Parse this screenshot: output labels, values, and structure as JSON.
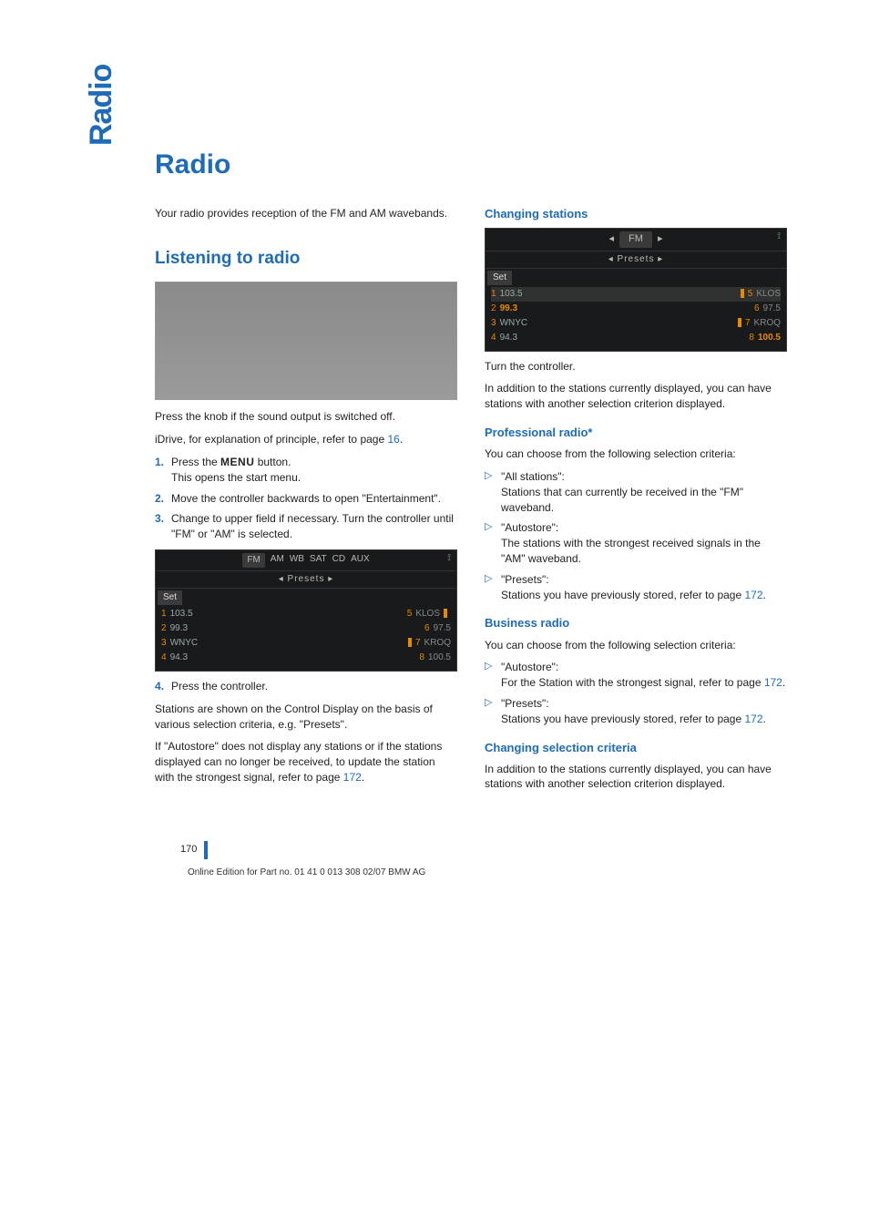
{
  "sidebar_title": "Radio",
  "page_title": "Radio",
  "intro": "Your radio provides reception of the FM and AM wavebands.",
  "left": {
    "section_title": "Listening to radio",
    "after_img1": "Press the knob if the sound output is switched off.",
    "idrive_line_a": "iDrive, for explanation of principle, refer to page ",
    "idrive_page": "16",
    "idrive_line_b": ".",
    "steps": [
      {
        "n": "1.",
        "pre": "Press the ",
        "btn": "MENU",
        "post": " button.",
        "sub": "This opens the start menu."
      },
      {
        "n": "2.",
        "text": "Move the controller backwards to open \"Entertainment\"."
      },
      {
        "n": "3.",
        "text": "Change to upper field if necessary. Turn the controller until \"FM\" or \"AM\" is selected."
      }
    ],
    "screen": {
      "top_tabs": [
        "FM",
        "AM",
        "WB",
        "SAT",
        "CD",
        "AUX"
      ],
      "sub": "◂  Presets  ▸",
      "set": "Set",
      "rows": [
        {
          "ln": "1",
          "l": "103.5",
          "rn": "5",
          "r": "KLOS",
          "bar": true
        },
        {
          "ln": "2",
          "l": "99.3",
          "rn": "6",
          "r": "97.5"
        },
        {
          "ln": "3",
          "l": "WNYC",
          "rn": "7",
          "r": "KROQ",
          "bar": true
        },
        {
          "ln": "4",
          "l": "94.3",
          "rn": "8",
          "r": "100.5"
        }
      ]
    },
    "step4": {
      "n": "4.",
      "text": "Press the controller."
    },
    "para1": "Stations are shown on the Control Display on the basis of various selection criteria, e.g. \"Presets\".",
    "para2_a": "If \"Autostore\" does not display any stations or if the stations displayed can no longer be received, to update the station with the strongest signal, refer to page ",
    "para2_page": "172",
    "para2_b": "."
  },
  "right": {
    "changing_stations": "Changing stations",
    "screen": {
      "top_left_arrow": "◂",
      "top_label": "FM",
      "top_right_arrow": "▸",
      "sub": "◂  Presets  ▸",
      "set": "Set",
      "rows": [
        {
          "ln": "1",
          "l": "103.5",
          "rn": "5",
          "r": "KLOS",
          "bar": true,
          "hl": true
        },
        {
          "ln": "2",
          "l": "99.3",
          "rn": "6",
          "r": "97.5",
          "orange_l": true
        },
        {
          "ln": "3",
          "l": "WNYC",
          "rn": "7",
          "r": "KROQ",
          "bar": true
        },
        {
          "ln": "4",
          "l": "94.3",
          "rn": "8",
          "r": "100.5",
          "orange_r": true
        }
      ]
    },
    "turn": "Turn the controller.",
    "turn_sub": "In addition to the stations currently displayed, you can have stations with another selection criterion displayed.",
    "pro_title": "Professional radio*",
    "pro_intro": "You can choose from the following selection criteria:",
    "pro_items": [
      {
        "head": "\"All stations\":",
        "body": "Stations that can currently be received in the \"FM\" waveband."
      },
      {
        "head": "\"Autostore\":",
        "body": "The stations with the strongest received signals in the \"AM\" waveband."
      },
      {
        "head": "\"Presets\":",
        "body_a": "Stations you have previously stored, refer to page ",
        "page": "172",
        "body_b": "."
      }
    ],
    "bus_title": "Business radio",
    "bus_intro": "You can choose from the following selection criteria:",
    "bus_items": [
      {
        "head": "\"Autostore\":",
        "body_a": "For the Station with the strongest signal, refer to page ",
        "page": "172",
        "body_b": "."
      },
      {
        "head": "\"Presets\":",
        "body_a": "Stations you have previously stored, refer to page ",
        "page": "172",
        "body_b": "."
      }
    ],
    "chg_sel_title": "Changing selection criteria",
    "chg_sel_body": "In addition to the stations currently displayed, you can have stations with another selection criterion displayed."
  },
  "footer": {
    "page": "170",
    "line": "Online Edition for Part no. 01 41 0 013 308 02/07 BMW AG"
  },
  "colors": {
    "accent": "#1e6bb8",
    "text": "#222222",
    "screen_bg": "#191a1c",
    "screen_text": "#b8b8b0",
    "orange": "#e68a00"
  }
}
